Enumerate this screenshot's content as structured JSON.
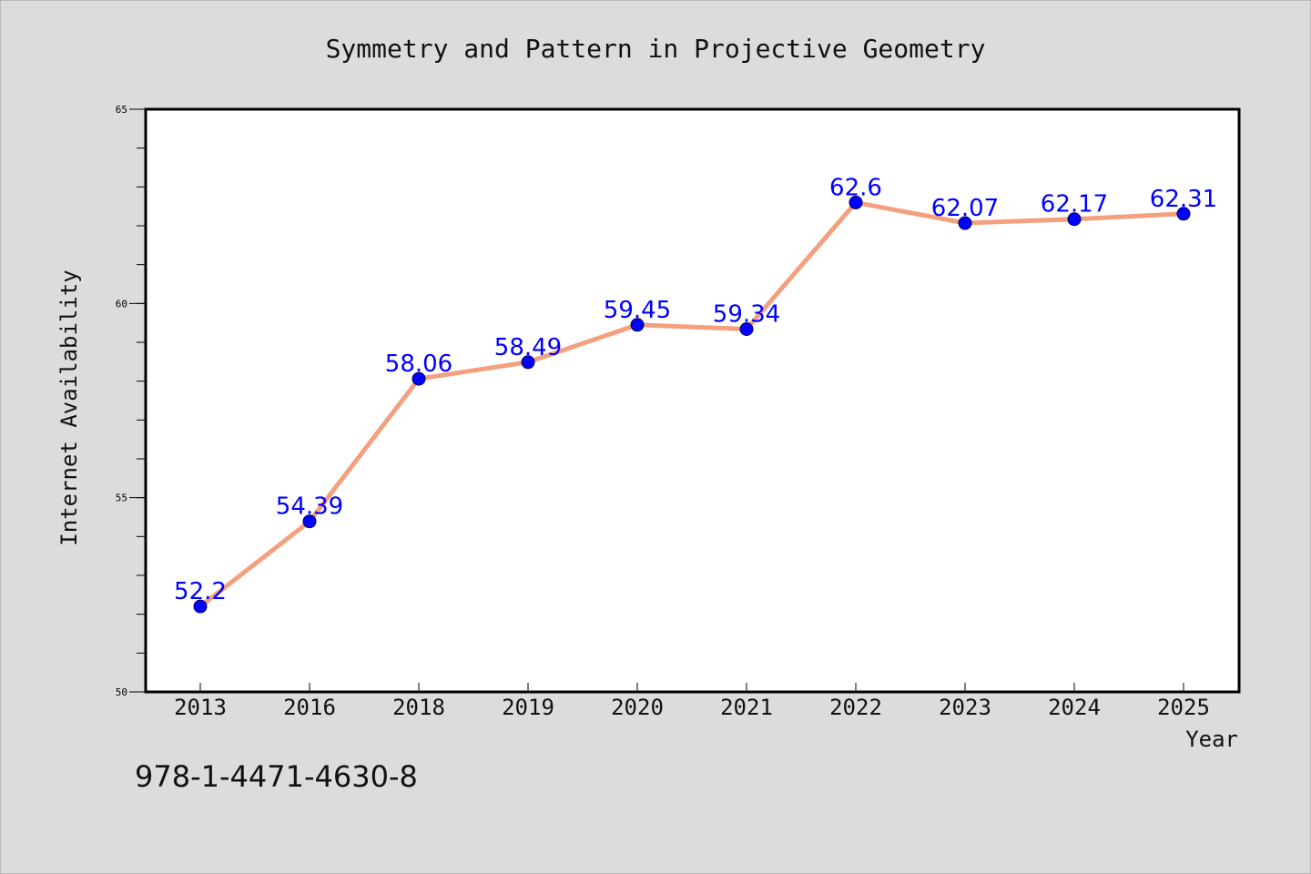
{
  "chart_data": {
    "type": "line",
    "title": "Symmetry and Pattern in Projective Geometry",
    "xlabel": "Year",
    "ylabel": "Internet Availability",
    "categories": [
      "2013",
      "2016",
      "2018",
      "2019",
      "2020",
      "2021",
      "2022",
      "2023",
      "2024",
      "2025"
    ],
    "series": [
      {
        "values": [
          52.2,
          54.39,
          58.06,
          58.49,
          59.45,
          59.34,
          62.6,
          62.07,
          62.17,
          62.31
        ],
        "data_labels": [
          "52.2",
          "54.39",
          "58.06",
          "58.49",
          "59.45",
          "59.34",
          "62.6",
          "62.07",
          "62.17",
          "62.31"
        ],
        "line_color": "#f4a07e",
        "marker_color": "#0000ff",
        "label_color": "#0000ff"
      }
    ],
    "ylim": [
      50,
      65
    ],
    "yticks": [
      50,
      55,
      60,
      65
    ],
    "y_minor_step": 1,
    "grid": false,
    "legend": "none",
    "background_color": "#dcdcdc",
    "plot_background_color": "#ffffff"
  },
  "footer": {
    "isbn": "978-1-4471-4630-8"
  }
}
